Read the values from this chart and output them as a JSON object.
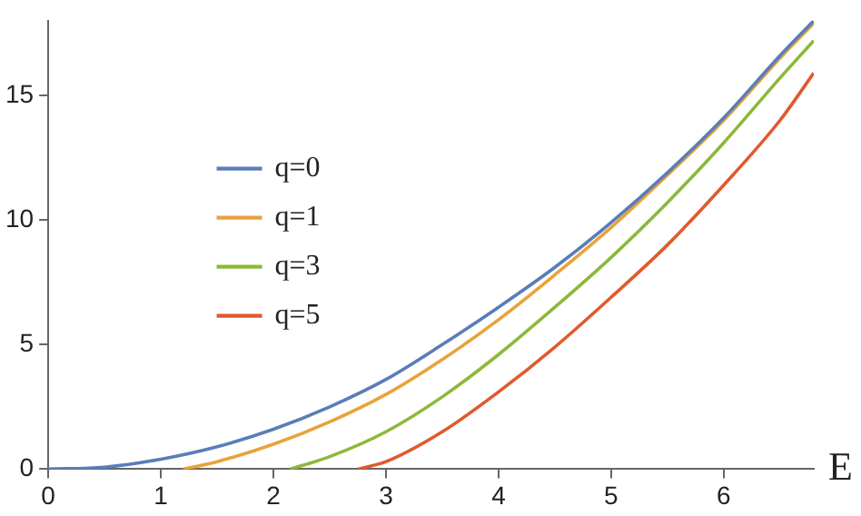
{
  "chart_data": {
    "type": "line",
    "xlabel": "E",
    "xlim": [
      0,
      6.8
    ],
    "ylim": [
      0,
      18
    ],
    "xticks": [
      0,
      1,
      2,
      3,
      4,
      5,
      6
    ],
    "yticks": [
      0,
      5,
      10,
      15
    ],
    "grid": false,
    "legend": "left",
    "marker": "none",
    "line_style": "solid",
    "series": [
      {
        "name": "q=0",
        "color": "#5a7db8",
        "x": [
          0,
          0.5,
          1,
          1.5,
          2,
          2.5,
          3,
          3.5,
          4,
          4.5,
          5,
          5.5,
          6,
          6.5,
          6.8
        ],
        "values": [
          0,
          0.08,
          0.4,
          0.9,
          1.6,
          2.5,
          3.6,
          5.0,
          6.5,
          8.1,
          9.9,
          11.9,
          14.1,
          16.6,
          18.0
        ]
      },
      {
        "name": "q=1",
        "color": "#e8a33a",
        "x": [
          1.2,
          1.5,
          2,
          2.5,
          3,
          3.5,
          4,
          4.5,
          5,
          5.5,
          6,
          6.5,
          6.8
        ],
        "values": [
          0,
          0.3,
          1.0,
          1.9,
          3.0,
          4.4,
          6.0,
          7.8,
          9.7,
          11.8,
          14.0,
          16.5,
          17.9
        ]
      },
      {
        "name": "q=3",
        "color": "#8db83a",
        "x": [
          2.15,
          2.5,
          3,
          3.5,
          4,
          4.5,
          5,
          5.5,
          6,
          6.5,
          6.8
        ],
        "values": [
          0,
          0.5,
          1.5,
          2.9,
          4.6,
          6.5,
          8.5,
          10.7,
          13.1,
          15.7,
          17.2
        ]
      },
      {
        "name": "q=5",
        "color": "#e05a2d",
        "x": [
          2.75,
          3,
          3.5,
          4,
          4.5,
          5,
          5.5,
          6,
          6.5,
          6.8
        ],
        "values": [
          0,
          0.3,
          1.5,
          3.1,
          4.9,
          6.9,
          9.0,
          11.4,
          14.0,
          15.9
        ]
      }
    ]
  }
}
